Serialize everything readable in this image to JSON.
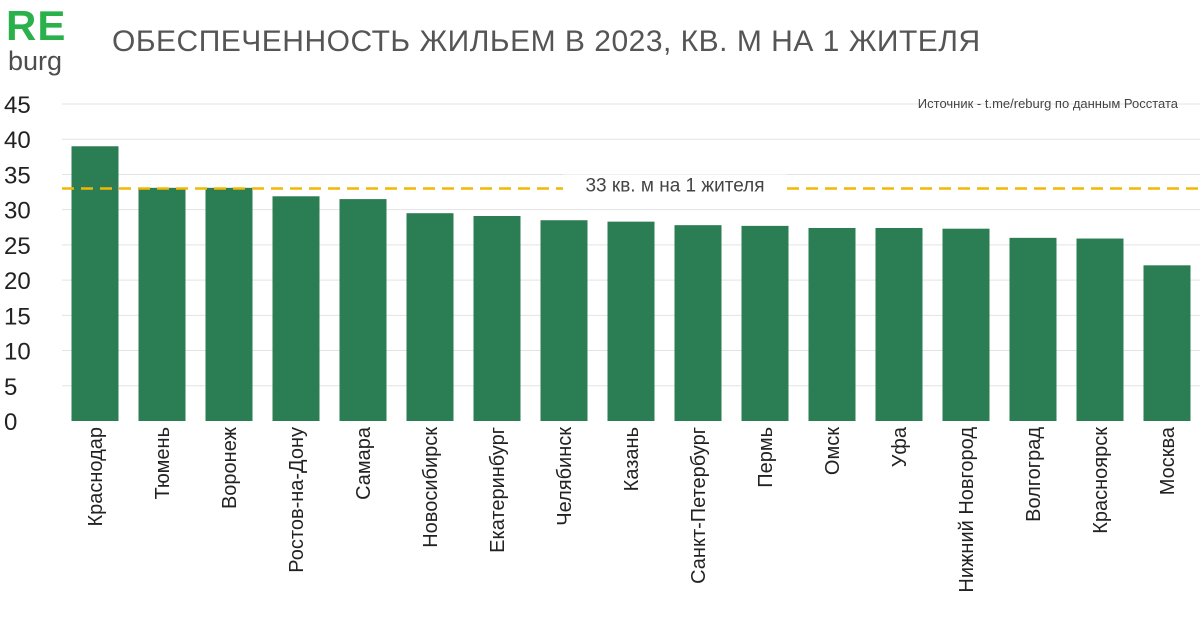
{
  "logo": {
    "line1": "RE",
    "line2": "burg"
  },
  "title": "ОБЕСПЕЧЕННОСТЬ ЖИЛЬЕМ В 2023, КВ. М НА 1 ЖИТЕЛЯ",
  "colors": {
    "bar": "#2b7d53",
    "reference_line": "#f2b705",
    "logo_green": "#2bb14c",
    "grid": "#e3e3e3"
  },
  "chart_data": {
    "type": "bar",
    "title": "ОБЕСПЕЧЕННОСТЬ ЖИЛЬЕМ В 2023, КВ. М НА 1 ЖИТЕЛЯ",
    "source": "Источник - t.me/reburg по данным Росстата",
    "categories": [
      "Краснодар",
      "Тюмень",
      "Воронеж",
      "Ростов-на-Дону",
      "Самара",
      "Новосибирск",
      "Екатеринбург",
      "Челябинск",
      "Казань",
      "Санкт-Петербург",
      "Пермь",
      "Омск",
      "Уфа",
      "Нижний Новгород",
      "Волгоград",
      "Красноярск",
      "Москва"
    ],
    "values": [
      39.0,
      33.1,
      33.1,
      31.9,
      31.5,
      29.5,
      29.1,
      28.5,
      28.3,
      27.8,
      27.7,
      27.4,
      27.4,
      27.3,
      26.0,
      25.9,
      22.1
    ],
    "ylim": [
      0,
      45
    ],
    "yticks": [
      0,
      5,
      10,
      15,
      20,
      25,
      30,
      35,
      40,
      45
    ],
    "reference_line": {
      "value": 33,
      "label": "33 кв. м на 1 жителя"
    },
    "grid": true,
    "legend": "none"
  }
}
